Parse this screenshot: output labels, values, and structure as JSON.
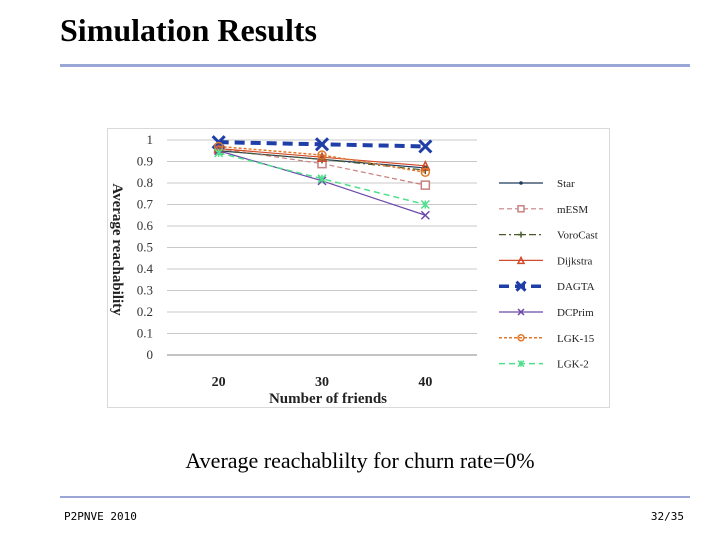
{
  "slide": {
    "title": "Simulation Results",
    "caption": "Average reachablilty for churn rate=0%",
    "footer_left": "P2PNVE 2010",
    "footer_right": "32/35"
  },
  "chart_data": {
    "type": "line",
    "title": "",
    "xlabel": "Number of friends",
    "ylabel": "Average reachability",
    "categories": [
      "20",
      "30",
      "40"
    ],
    "ylim": [
      0,
      1
    ],
    "yticks": [
      0,
      0.1,
      0.2,
      0.3,
      0.4,
      0.5,
      0.6,
      0.7,
      0.8,
      0.9,
      1
    ],
    "ytick_labels": [
      "0",
      "0.1",
      "0.2",
      "0.3",
      "0.4",
      "0.5",
      "0.6",
      "0.7",
      "0.8",
      "0.9",
      "1"
    ],
    "grid": true,
    "legend": "right",
    "series": [
      {
        "name": "Star",
        "values": [
          0.95,
          0.91,
          0.87
        ],
        "color": "#1f3b5a",
        "dash": "",
        "marker": "dot",
        "width": 1.2
      },
      {
        "name": "mESM",
        "values": [
          0.96,
          0.89,
          0.79
        ],
        "color": "#c98080",
        "dash": "5,3",
        "marker": "square",
        "width": 1.2
      },
      {
        "name": "VoroCast",
        "values": [
          0.95,
          0.91,
          0.86
        ],
        "color": "#4a5a2a",
        "dash": "7,3,2,3",
        "marker": "plus",
        "width": 1.2
      },
      {
        "name": "Dijkstra",
        "values": [
          0.96,
          0.92,
          0.88
        ],
        "color": "#d24a2a",
        "dash": "",
        "marker": "triangle",
        "width": 1.2
      },
      {
        "name": "DAGTA",
        "values": [
          0.99,
          0.98,
          0.97
        ],
        "color": "#1f3ea8",
        "dash": "10,6",
        "marker": "x",
        "width": 4
      },
      {
        "name": "DCPrim",
        "values": [
          0.95,
          0.81,
          0.65
        ],
        "color": "#6a4aa8",
        "dash": "",
        "marker": "x",
        "width": 1.2
      },
      {
        "name": "LGK-15",
        "values": [
          0.97,
          0.93,
          0.85
        ],
        "color": "#e07a2a",
        "dash": "3,2",
        "marker": "circle",
        "width": 1.5
      },
      {
        "name": "LGK-2",
        "values": [
          0.94,
          0.82,
          0.7
        ],
        "color": "#4ee08a",
        "dash": "6,4",
        "marker": "star",
        "width": 1.5
      }
    ],
    "legend_labels": [
      "Star",
      "mESM",
      "VoroCast",
      "Dijkstra",
      "DAGTA",
      "DCPrim",
      "LGK-15",
      "LGK-2"
    ]
  }
}
